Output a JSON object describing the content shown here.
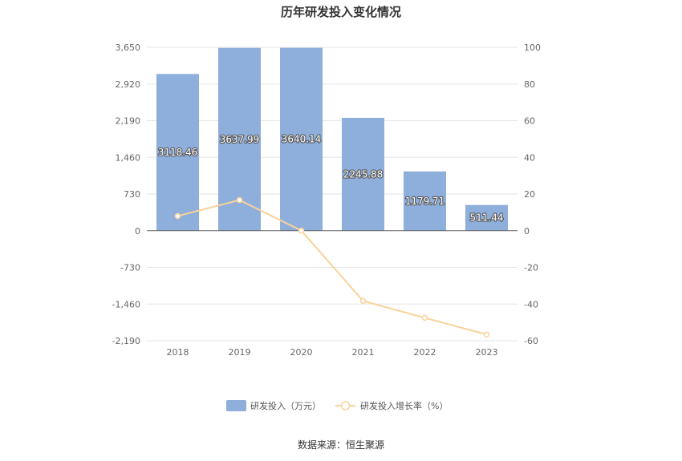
{
  "chart_data": {
    "type": "bar",
    "title": "历年研发投入变化情况",
    "categories": [
      "2018",
      "2019",
      "2020",
      "2021",
      "2022",
      "2023"
    ],
    "series": [
      {
        "name": "研发投入（万元）",
        "type": "bar",
        "axis": "left",
        "values": [
          3118.46,
          3637.99,
          3640.14,
          2245.88,
          1179.71,
          511.44
        ],
        "labels": [
          "3118.46",
          "3637.99",
          "3640.14",
          "2245.88",
          "1179.71",
          "511.44"
        ]
      },
      {
        "name": "研发投入增长率（%）",
        "type": "line",
        "axis": "right",
        "values": [
          8.0,
          16.7,
          0.06,
          -38.3,
          -47.5,
          -56.6
        ]
      }
    ],
    "y_left": {
      "ticks": [
        3650,
        2920,
        2190,
        1460,
        730,
        0,
        -730,
        -1460,
        -2190
      ],
      "tick_labels": [
        "3,650",
        "2,920",
        "2,190",
        "1,460",
        "730",
        "0",
        "-730",
        "-1,460",
        "-2,190"
      ],
      "range": [
        -2190,
        3650
      ]
    },
    "y_right": {
      "ticks": [
        100,
        80,
        60,
        40,
        20,
        0,
        -20,
        -40,
        -60
      ],
      "tick_labels": [
        "100",
        "80",
        "60",
        "40",
        "20",
        "0",
        "-20",
        "-40",
        "-60"
      ],
      "range": [
        -60,
        100
      ]
    },
    "grid": true,
    "legend": "bottom-center",
    "colors": {
      "bar": "#8eaedb",
      "line": "#f8d39a",
      "grid": "#e6e6e6",
      "axis": "#999999"
    }
  },
  "source_text": "数据来源：恒生聚源"
}
